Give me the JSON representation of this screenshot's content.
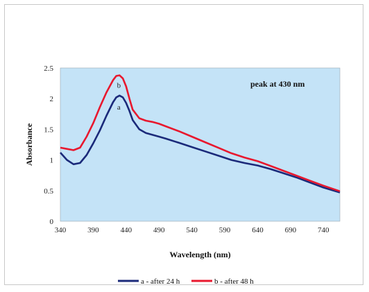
{
  "chart_data": {
    "type": "line",
    "title": "",
    "xlabel": "Wavelength (nm)",
    "ylabel": "Absorbance",
    "xlim": [
      340,
      765
    ],
    "ylim": [
      0,
      2.5
    ],
    "xticks": [
      340,
      390,
      440,
      490,
      540,
      590,
      640,
      690,
      740
    ],
    "yticks": [
      0,
      0.5,
      1,
      1.5,
      2,
      2.5
    ],
    "grid": false,
    "legend_position": "bottom",
    "background_color": "#c4e3f7",
    "annotation": "peak at  430 nm",
    "series": [
      {
        "name": "a - after 24 h",
        "label": "a",
        "color": "#1b2a7a",
        "x": [
          340,
          350,
          360,
          370,
          380,
          390,
          400,
          410,
          420,
          425,
          430,
          435,
          440,
          445,
          450,
          460,
          470,
          480,
          490,
          500,
          520,
          540,
          560,
          580,
          600,
          620,
          640,
          660,
          680,
          700,
          720,
          740,
          765
        ],
        "y": [
          1.12,
          1.0,
          0.93,
          0.95,
          1.08,
          1.27,
          1.48,
          1.72,
          1.94,
          2.02,
          2.05,
          2.02,
          1.93,
          1.8,
          1.65,
          1.5,
          1.44,
          1.41,
          1.38,
          1.35,
          1.28,
          1.21,
          1.14,
          1.07,
          1.0,
          0.95,
          0.91,
          0.85,
          0.78,
          0.71,
          0.63,
          0.55,
          0.47
        ]
      },
      {
        "name": "b - after 48 h",
        "label": "b",
        "color": "#e8182e",
        "x": [
          340,
          350,
          360,
          370,
          380,
          390,
          400,
          410,
          420,
          425,
          430,
          435,
          440,
          445,
          450,
          460,
          470,
          480,
          490,
          500,
          520,
          540,
          560,
          580,
          600,
          620,
          640,
          660,
          680,
          700,
          720,
          740,
          765
        ],
        "y": [
          1.2,
          1.18,
          1.16,
          1.2,
          1.38,
          1.6,
          1.86,
          2.1,
          2.3,
          2.37,
          2.38,
          2.33,
          2.2,
          2.0,
          1.82,
          1.68,
          1.64,
          1.62,
          1.59,
          1.55,
          1.47,
          1.38,
          1.29,
          1.2,
          1.11,
          1.04,
          0.98,
          0.9,
          0.82,
          0.74,
          0.66,
          0.58,
          0.49
        ]
      }
    ]
  }
}
